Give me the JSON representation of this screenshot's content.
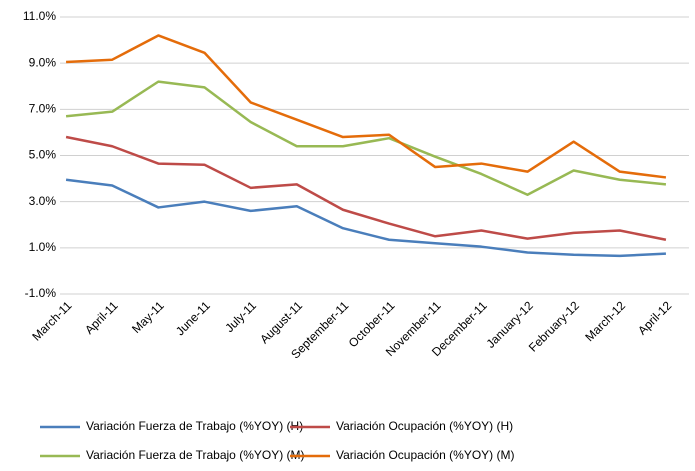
{
  "chart_data": {
    "type": "line",
    "categories": [
      "March-11",
      "April-11",
      "May-11",
      "June-11",
      "July-11",
      "August-11",
      "September-11",
      "October-11",
      "November-11",
      "December-11",
      "January-12",
      "February-12",
      "March-12",
      "April-12"
    ],
    "series": [
      {
        "name": "Variación Fuerza de Trabajo (%YOY) (H)",
        "color": "#4a7ebb",
        "values": [
          3.95,
          3.7,
          2.75,
          3.0,
          2.6,
          2.8,
          1.85,
          1.35,
          1.2,
          1.05,
          0.8,
          0.7,
          0.65,
          0.75
        ]
      },
      {
        "name": "Variación Ocupación (%YOY) (H)",
        "color": "#be4b48",
        "values": [
          5.8,
          5.4,
          4.65,
          4.6,
          3.6,
          3.75,
          2.65,
          2.05,
          1.5,
          1.75,
          1.4,
          1.65,
          1.75,
          1.35
        ]
      },
      {
        "name": "Variación Fuerza de Trabajo (%YOY) (M)",
        "color": "#98b954",
        "values": [
          6.7,
          6.9,
          8.2,
          7.95,
          6.45,
          5.4,
          5.4,
          5.75,
          4.95,
          4.2,
          3.3,
          4.35,
          3.95,
          3.75
        ]
      },
      {
        "name": "Variación Ocupación (%YOY) (M)",
        "color": "#e46c0a",
        "values": [
          9.05,
          9.15,
          10.2,
          9.45,
          7.3,
          6.55,
          5.8,
          5.9,
          4.5,
          4.65,
          4.3,
          5.6,
          4.3,
          4.05
        ]
      }
    ],
    "ylim": [
      -1,
      11
    ],
    "yticks": [
      {
        "value": -1,
        "label": "-1.0%"
      },
      {
        "value": 1,
        "label": "1.0%"
      },
      {
        "value": 3,
        "label": "3.0%"
      },
      {
        "value": 5,
        "label": "5.0%"
      },
      {
        "value": 7,
        "label": "7.0%"
      },
      {
        "value": 9,
        "label": "9.0%"
      },
      {
        "value": 11,
        "label": "11.0%"
      }
    ],
    "grid": true,
    "legend": "bottom"
  }
}
